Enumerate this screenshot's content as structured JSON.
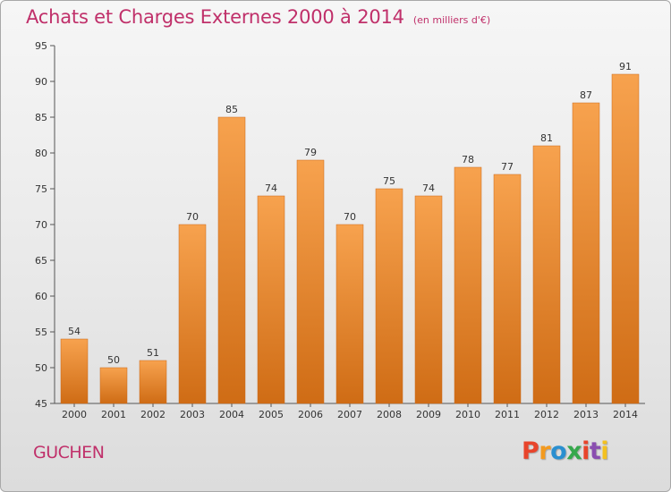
{
  "header": {
    "title": "Achats et Charges Externes 2000 à 2014",
    "unit": "(en milliers d'€)"
  },
  "footer": {
    "commune": "GUCHEN",
    "logo": [
      "P",
      "r",
      "o",
      "x",
      "i",
      "t",
      "i"
    ]
  },
  "colors": {
    "title": "#c0306a",
    "bar_top": "#f7a24e",
    "bar_bottom": "#cf6c15",
    "axis": "#555555"
  },
  "chart_data": {
    "type": "bar",
    "title": "Achats et Charges Externes 2000 à 2014",
    "subtitle": "(en milliers d'€)",
    "xlabel": "",
    "ylabel": "",
    "ylim": [
      45,
      95
    ],
    "yticks": [
      45,
      50,
      55,
      60,
      65,
      70,
      75,
      80,
      85,
      90,
      95
    ],
    "grid": false,
    "categories": [
      "2000",
      "2001",
      "2002",
      "2003",
      "2004",
      "2005",
      "2006",
      "2007",
      "2008",
      "2009",
      "2010",
      "2011",
      "2012",
      "2013",
      "2014"
    ],
    "values": [
      54,
      50,
      51,
      70,
      85,
      74,
      79,
      70,
      75,
      74,
      78,
      77,
      81,
      87,
      91
    ]
  }
}
